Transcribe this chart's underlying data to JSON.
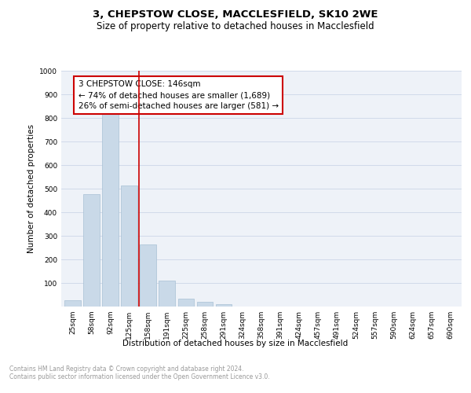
{
  "title1": "3, CHEPSTOW CLOSE, MACCLESFIELD, SK10 2WE",
  "title2": "Size of property relative to detached houses in Macclesfield",
  "xlabel": "Distribution of detached houses by size in Macclesfield",
  "ylabel": "Number of detached properties",
  "categories": [
    "25sqm",
    "58sqm",
    "92sqm",
    "125sqm",
    "158sqm",
    "191sqm",
    "225sqm",
    "258sqm",
    "291sqm",
    "324sqm",
    "358sqm",
    "391sqm",
    "424sqm",
    "457sqm",
    "491sqm",
    "524sqm",
    "557sqm",
    "590sqm",
    "624sqm",
    "657sqm",
    "690sqm"
  ],
  "values": [
    28,
    478,
    820,
    515,
    265,
    110,
    35,
    20,
    10,
    0,
    0,
    0,
    0,
    0,
    0,
    0,
    0,
    0,
    0,
    0,
    0
  ],
  "bar_color": "#c9d9e8",
  "bar_edge_color": "#a8c0d4",
  "vline_x": 3.5,
  "vline_color": "#cc0000",
  "annotation_text": "3 CHEPSTOW CLOSE: 146sqm\n← 74% of detached houses are smaller (1,689)\n26% of semi-detached houses are larger (581) →",
  "annotation_box_color": "#cc0000",
  "ylim": [
    0,
    1000
  ],
  "yticks": [
    0,
    100,
    200,
    300,
    400,
    500,
    600,
    700,
    800,
    900,
    1000
  ],
  "grid_color": "#ccd6e8",
  "bg_color": "#eef2f8",
  "footer_text": "Contains HM Land Registry data © Crown copyright and database right 2024.\nContains public sector information licensed under the Open Government Licence v3.0.",
  "title_fontsize": 9.5,
  "subtitle_fontsize": 8.5,
  "axis_label_fontsize": 7.5,
  "tick_fontsize": 6.5,
  "annotation_fontsize": 7.5,
  "footer_fontsize": 5.5
}
